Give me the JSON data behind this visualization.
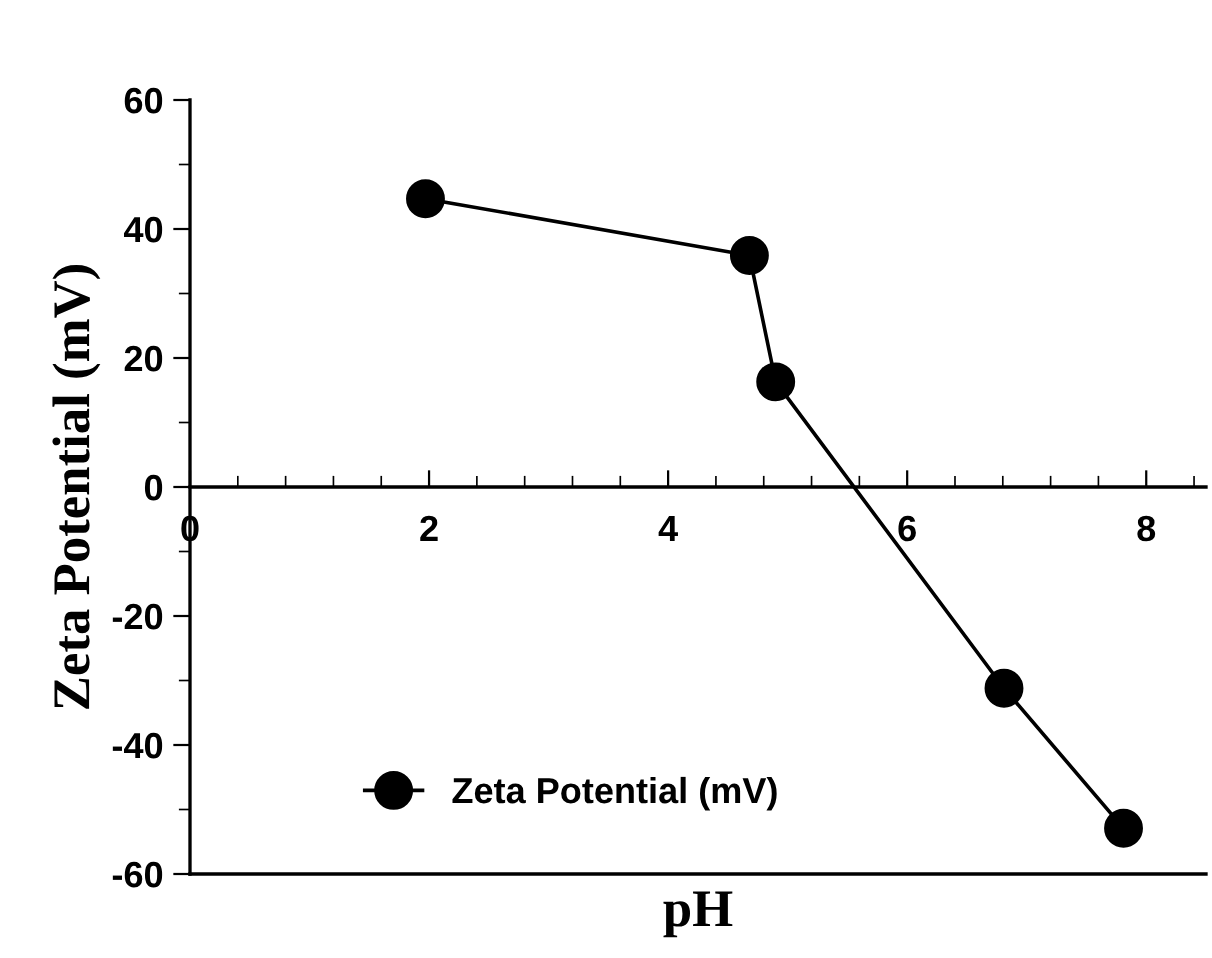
{
  "chart_data": {
    "type": "line",
    "xlabel": "pH",
    "ylabel": "Zeta Potential (mV)",
    "x": [
      1.97,
      4.68,
      4.9,
      6.81,
      7.81
    ],
    "series": [
      {
        "name": "Zeta Potential (mV)",
        "color": "#000000",
        "values": [
          44.7,
          35.9,
          16.3,
          -31.2,
          -52.9
        ]
      }
    ],
    "xlim": [
      0,
      8.5
    ],
    "xticks": [
      0,
      2,
      4,
      6,
      8
    ],
    "ylim": [
      -60,
      60
    ],
    "yticks": [
      -60,
      -40,
      -20,
      0,
      20,
      40,
      60
    ],
    "marker": "circle",
    "line_style": "solid",
    "grid": false,
    "legend": "bottom left"
  }
}
